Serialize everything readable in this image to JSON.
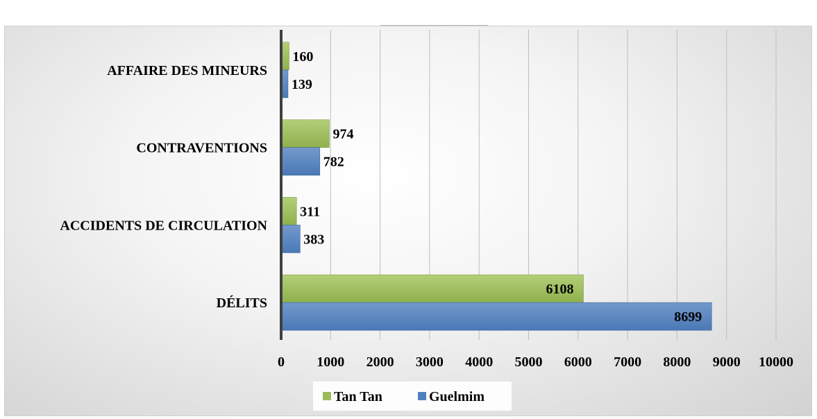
{
  "chart_data": {
    "type": "bar",
    "orientation": "horizontal",
    "title": "",
    "categories": [
      "AFFAIRE DES MINEURS",
      "CONTRAVENTIONS",
      "ACCIDENTS DE CIRCULATION",
      "DÉLITS"
    ],
    "series": [
      {
        "name": "Tan Tan",
        "color": "#9bbb59",
        "values": [
          160,
          974,
          311,
          6108
        ]
      },
      {
        "name": "Guelmim",
        "color": "#4f81bd",
        "values": [
          139,
          782,
          383,
          8699
        ]
      }
    ],
    "xlim": [
      0,
      10000
    ],
    "xticks": [
      0,
      1000,
      2000,
      3000,
      4000,
      5000,
      6000,
      7000,
      8000,
      9000,
      10000
    ],
    "xtick_labels": [
      "0",
      "1000",
      "2000",
      "3000",
      "4000",
      "5000",
      "6000",
      "7000",
      "8000",
      "9000",
      "10000"
    ],
    "grid": "vertical",
    "legend": "bottom",
    "data_labels": true
  }
}
